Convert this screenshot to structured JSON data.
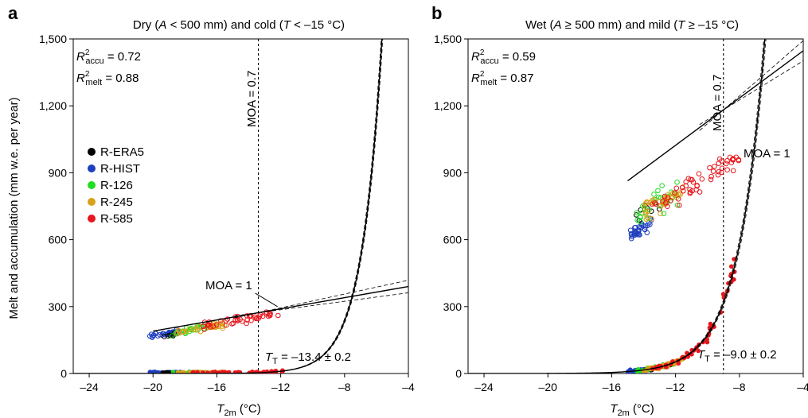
{
  "figure": {
    "ylabel": "Melt and accumulation (mm w.e. per year)",
    "xlabel_main": "T",
    "xlabel_sub": "2m",
    "xlabel_unit": " (°C)"
  },
  "legend": [
    {
      "label": "R-ERA5",
      "color": "#000000"
    },
    {
      "label": "R-HIST",
      "color": "#1f3fbf"
    },
    {
      "label": "R-126",
      "color": "#22dd22"
    },
    {
      "label": "R-245",
      "color": "#d9a21b"
    },
    {
      "label": "R-585",
      "color": "#e8161c"
    }
  ],
  "panels": [
    {
      "letter": "a",
      "title": {
        "pre": "Dry (",
        "v1": "A",
        "mid": " < 500 mm) and cold (",
        "v2": "T",
        "post": " < –15 °C)"
      },
      "r2_accu": {
        "sym": "R",
        "sup": "2",
        "sub": "accu",
        "value": " = 0.72"
      },
      "r2_melt": {
        "sym": "R",
        "sup": "2",
        "sub": "melt",
        "value": " = 0.88"
      },
      "moa07": "MOA = 0.7",
      "moa1": "MOA = 1",
      "tt": {
        "sym": "T",
        "sub": "T",
        "value": " = –13.4 ± 0.2"
      },
      "xticks": [
        "–24",
        "–20",
        "–16",
        "–12",
        "–8",
        "–4"
      ],
      "yticks": [
        "0",
        "300",
        "600",
        "900",
        "1,200",
        "1,500"
      ]
    },
    {
      "letter": "b",
      "title": {
        "pre": "Wet (",
        "v1": "A",
        "mid": " ≥ 500 mm) and mild (",
        "v2": "T",
        "post": " ≥ –15 °C)"
      },
      "r2_accu": {
        "sym": "R",
        "sup": "2",
        "sub": "accu",
        "value": " = 0.59"
      },
      "r2_melt": {
        "sym": "R",
        "sup": "2",
        "sub": "melt",
        "value": " = 0.87"
      },
      "moa07": "MOA = 0.7",
      "moa1": "MOA = 1",
      "tt": {
        "sym": "T",
        "sub": "T",
        "value": " = –9.0 ± 0.2"
      },
      "xticks": [
        "–24",
        "–20",
        "–16",
        "–12",
        "–8",
        "–4"
      ],
      "yticks": [
        "0",
        "300",
        "600",
        "900",
        "1,200",
        "1,500"
      ]
    }
  ],
  "chart_data": [
    {
      "type": "scatter",
      "panel": "a",
      "xlim": [
        -25,
        -4
      ],
      "ylim": [
        0,
        1500
      ],
      "xticks": [
        -24,
        -20,
        -16,
        -12,
        -8,
        -4
      ],
      "yticks": [
        0,
        300,
        600,
        900,
        1200,
        1500
      ],
      "melt_fit": {
        "a": 0.018,
        "b": 0.79
      },
      "accu_fit": {
        "intercept": 290,
        "slope": 12.5,
        "upper_slope": 15.5,
        "lower_slope": 9.5
      },
      "moa07_x": -13.4,
      "tt_x": -13.4,
      "clusters": [
        {
          "series": "R-HIST",
          "kind": "accumulation",
          "x_range": [
            -20.2,
            -18.3
          ],
          "y_center": 178,
          "y_spread": 14,
          "n": 45
        },
        {
          "series": "R-ERA5",
          "kind": "accumulation",
          "x_range": [
            -19.5,
            -18.5
          ],
          "y_center": 170,
          "y_spread": 10,
          "n": 6
        },
        {
          "series": "R-126",
          "kind": "accumulation",
          "x_range": [
            -19,
            -16.5
          ],
          "y_center": 195,
          "y_spread": 18,
          "n": 25
        },
        {
          "series": "R-245",
          "kind": "accumulation",
          "x_range": [
            -18.5,
            -15.5
          ],
          "y_center": 205,
          "y_spread": 20,
          "n": 35
        },
        {
          "series": "R-585",
          "kind": "accumulation",
          "x_range": [
            -17,
            -12
          ],
          "y_center": 240,
          "y_spread": 28,
          "n": 45
        },
        {
          "series": "R-HIST",
          "kind": "melt",
          "x_range": [
            -20.2,
            -18.3
          ],
          "n": 45
        },
        {
          "series": "R-ERA5",
          "kind": "melt",
          "x_range": [
            -19.5,
            -18.5
          ],
          "n": 6
        },
        {
          "series": "R-126",
          "kind": "melt",
          "x_range": [
            -19,
            -16.5
          ],
          "n": 25
        },
        {
          "series": "R-245",
          "kind": "melt",
          "x_range": [
            -18.5,
            -15.5
          ],
          "n": 35
        },
        {
          "series": "R-585",
          "kind": "melt",
          "x_range": [
            -17.5,
            -11.8
          ],
          "n": 45
        }
      ]
    },
    {
      "type": "scatter",
      "panel": "b",
      "xlim": [
        -25,
        -4
      ],
      "ylim": [
        0,
        1500
      ],
      "xticks": [
        -24,
        -20,
        -16,
        -12,
        -8,
        -4
      ],
      "yticks": [
        0,
        300,
        600,
        900,
        1200,
        1500
      ],
      "melt_fit": {
        "a": 0.43,
        "b": 0.6
      },
      "accu_fit": {
        "intercept": 1023,
        "slope": 53,
        "upper_slope": 62,
        "lower_slope": 44
      },
      "moa07_x": -9.0,
      "tt_x": -9.0,
      "clusters": [
        {
          "series": "R-HIST",
          "kind": "accumulation",
          "x_range": [
            -15,
            -13.5
          ],
          "y_center": 640,
          "y_spread": 45,
          "n": 40
        },
        {
          "series": "R-ERA5",
          "kind": "accumulation",
          "x_range": [
            -14.5,
            -12.5
          ],
          "y_center": 760,
          "y_spread": 60,
          "n": 10
        },
        {
          "series": "R-126",
          "kind": "accumulation",
          "x_range": [
            -14.5,
            -11.8
          ],
          "y_center": 760,
          "y_spread": 90,
          "n": 30
        },
        {
          "series": "R-245",
          "kind": "accumulation",
          "x_range": [
            -14,
            -11.5
          ],
          "y_center": 780,
          "y_spread": 80,
          "n": 40
        },
        {
          "series": "R-585",
          "kind": "accumulation",
          "x_range": [
            -13.5,
            -8
          ],
          "y_center": 850,
          "y_spread": 70,
          "n": 55
        },
        {
          "series": "R-HIST",
          "kind": "melt",
          "x_range": [
            -15,
            -13.5
          ],
          "n": 40
        },
        {
          "series": "R-ERA5",
          "kind": "melt",
          "x_range": [
            -14,
            -12
          ],
          "n": 10
        },
        {
          "series": "R-126",
          "kind": "melt",
          "x_range": [
            -14.5,
            -11.8
          ],
          "n": 30
        },
        {
          "series": "R-245",
          "kind": "melt",
          "x_range": [
            -14,
            -11.5
          ],
          "n": 40
        },
        {
          "series": "R-585",
          "kind": "melt",
          "x_range": [
            -13.5,
            -8
          ],
          "n": 55
        }
      ]
    }
  ]
}
